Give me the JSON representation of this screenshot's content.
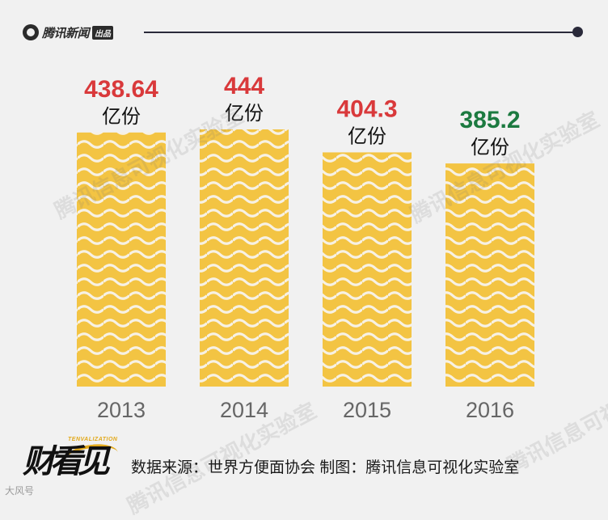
{
  "header": {
    "logo_text": "腾讯新闻",
    "logo_badge": "出品",
    "accent_color": "#2a2a3a"
  },
  "chart_data": {
    "type": "bar",
    "categories": [
      "2013",
      "2014",
      "2015",
      "2016"
    ],
    "values": [
      438.64,
      444,
      404.3,
      385.2
    ],
    "value_labels": [
      "438.64",
      "444",
      "404.3",
      "385.2"
    ],
    "unit": "亿份",
    "bar_color": "#f3c443",
    "pattern_color": "#ffffff",
    "label_colors": [
      "#d9393b",
      "#d9393b",
      "#d9393b",
      "#1c7a40"
    ],
    "grid": false,
    "ylim": [
      0,
      460
    ]
  },
  "watermarks": [
    "腾讯信息可视化实验室",
    "腾讯信息可视化实验室",
    "腾讯信息可视化实验室",
    "腾讯信息可视化实验室"
  ],
  "footer": {
    "brand_text": "财看见",
    "brand_sub": "TENVALIZATION",
    "source_text": "数据来源：世界方便面协会 制图：腾讯信息可视化实验室",
    "corner_text": "大风号"
  }
}
